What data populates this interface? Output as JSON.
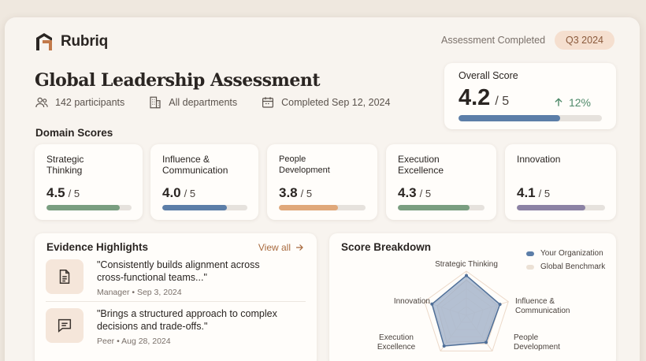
{
  "brand": {
    "name": "Rubriq"
  },
  "header": {
    "status": "Assessment Completed",
    "period": "Q3 2024"
  },
  "page": {
    "title": "Global Leadership Assessment",
    "participants": "142 participants",
    "departments": "All departments",
    "completed": "Completed Sep 12, 2024"
  },
  "overall": {
    "label": "Overall Score",
    "score": "4.2",
    "out_of": "/ 5",
    "delta": "12%",
    "progress": 0.71
  },
  "domains_label": "Domain Scores",
  "domains": [
    {
      "name": "Strategic Thinking",
      "score": "4.5",
      "out_of": "/ 5",
      "progress": 0.86,
      "color": "#7a9e80"
    },
    {
      "name": "Influence & Communication",
      "score": "4.0",
      "out_of": "/ 5",
      "progress": 0.76,
      "color": "#5c7ea8"
    },
    {
      "name": "People Development",
      "score": "3.8",
      "out_of": "/ 5",
      "progress": 0.68,
      "color": "#e0a87a"
    },
    {
      "name": "Execution Excellence",
      "score": "4.3",
      "out_of": "/ 5",
      "progress": 0.83,
      "color": "#7a9e80"
    },
    {
      "name": "Innovation",
      "score": "4.1",
      "out_of": "/ 5",
      "progress": 0.78,
      "color": "#8c82a4"
    }
  ],
  "evidence": {
    "title": "Evidence Highlights",
    "view_all": "View all",
    "items": [
      {
        "icon": "document-icon",
        "quote": "\"Consistently builds alignment across cross-functional teams...\"",
        "meta": "Manager • Sep 3, 2024"
      },
      {
        "icon": "comment-icon",
        "quote": "\"Brings a structured approach to complex decisions and trade-offs.\"",
        "meta": "Peer • Aug 28, 2024"
      }
    ]
  },
  "breakdown": {
    "title": "Score Breakdown",
    "legend": [
      {
        "name": "Your Organization",
        "color": "#5c7ea8"
      },
      {
        "name": "Global Benchmark",
        "color": "#ece1d5"
      }
    ],
    "axes": [
      "Strategic Thinking",
      "Influence & Communication",
      "People Development",
      "Execution Excellence",
      "Innovation"
    ],
    "org": [
      4.5,
      4.0,
      3.8,
      4.3,
      4.1
    ],
    "benchmark": [
      4.0,
      3.7,
      3.6,
      3.8,
      3.5
    ],
    "max": 5
  }
}
